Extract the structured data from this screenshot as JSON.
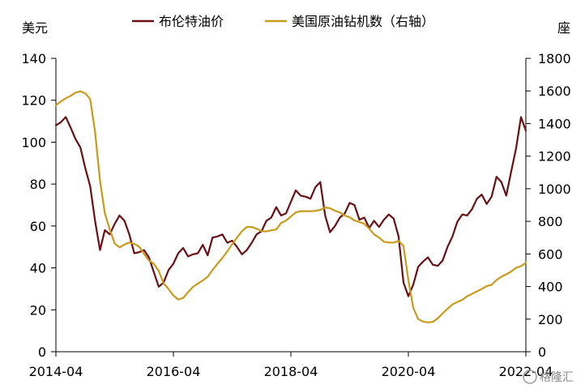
{
  "chart_data": {
    "type": "line",
    "title": "",
    "xlabel": "",
    "y_left": {
      "unit": "美元",
      "ylim": [
        0,
        140
      ],
      "ticks": [
        0,
        20,
        40,
        60,
        80,
        100,
        120,
        140
      ]
    },
    "y_right": {
      "unit": "座",
      "ylim": [
        0,
        1800
      ],
      "ticks": [
        0,
        200,
        400,
        600,
        800,
        1000,
        1200,
        1400,
        1600,
        1800
      ]
    },
    "x_ticks": [
      "2014-04",
      "2016-04",
      "2018-04",
      "2020-04",
      "2022-04"
    ],
    "grid": false,
    "legend_position": "top-center",
    "series": [
      {
        "name": "布伦特油价",
        "axis": "left",
        "color": "#6b0f12",
        "points": [
          [
            "2014-04",
            108
          ],
          [
            "2014-05",
            109.5
          ],
          [
            "2014-06",
            112
          ],
          [
            "2014-07",
            107
          ],
          [
            "2014-08",
            101.5
          ],
          [
            "2014-09",
            97.5
          ],
          [
            "2014-10",
            87.5
          ],
          [
            "2014-11",
            79
          ],
          [
            "2014-12",
            62.5
          ],
          [
            "2015-01",
            48.5
          ],
          [
            "2015-02",
            58
          ],
          [
            "2015-03",
            56
          ],
          [
            "2015-04",
            61
          ],
          [
            "2015-05",
            65
          ],
          [
            "2015-06",
            62.5
          ],
          [
            "2015-07",
            56
          ],
          [
            "2015-08",
            47
          ],
          [
            "2015-09",
            47.5
          ],
          [
            "2015-10",
            48.5
          ],
          [
            "2015-11",
            45
          ],
          [
            "2015-12",
            38
          ],
          [
            "2016-01",
            31
          ],
          [
            "2016-02",
            33
          ],
          [
            "2016-03",
            39
          ],
          [
            "2016-04",
            42
          ],
          [
            "2016-05",
            47
          ],
          [
            "2016-06",
            49.5
          ],
          [
            "2016-07",
            45.5
          ],
          [
            "2016-08",
            46.5
          ],
          [
            "2016-09",
            47
          ],
          [
            "2016-10",
            51
          ],
          [
            "2016-11",
            46
          ],
          [
            "2016-12",
            54.5
          ],
          [
            "2017-01",
            55
          ],
          [
            "2017-02",
            56
          ],
          [
            "2017-03",
            52
          ],
          [
            "2017-04",
            53
          ],
          [
            "2017-05",
            50
          ],
          [
            "2017-06",
            46.5
          ],
          [
            "2017-07",
            48.5
          ],
          [
            "2017-08",
            52
          ],
          [
            "2017-09",
            56
          ],
          [
            "2017-10",
            57.5
          ],
          [
            "2017-11",
            62.5
          ],
          [
            "2017-12",
            64
          ],
          [
            "2018-01",
            69
          ],
          [
            "2018-02",
            65
          ],
          [
            "2018-03",
            66
          ],
          [
            "2018-04",
            71.5
          ],
          [
            "2018-05",
            77
          ],
          [
            "2018-06",
            74.5
          ],
          [
            "2018-07",
            74
          ],
          [
            "2018-08",
            73
          ],
          [
            "2018-09",
            78.5
          ],
          [
            "2018-10",
            81
          ],
          [
            "2018-11",
            65
          ],
          [
            "2018-12",
            57
          ],
          [
            "2019-01",
            60
          ],
          [
            "2019-02",
            64
          ],
          [
            "2019-03",
            66
          ],
          [
            "2019-04",
            71
          ],
          [
            "2019-05",
            70
          ],
          [
            "2019-06",
            63
          ],
          [
            "2019-07",
            64
          ],
          [
            "2019-08",
            59
          ],
          [
            "2019-09",
            62.5
          ],
          [
            "2019-10",
            59.5
          ],
          [
            "2019-11",
            63
          ],
          [
            "2019-12",
            65.5
          ],
          [
            "2020-01",
            63.5
          ],
          [
            "2020-02",
            55
          ],
          [
            "2020-03",
            33
          ],
          [
            "2020-04",
            26.5
          ],
          [
            "2020-05",
            32
          ],
          [
            "2020-06",
            40.5
          ],
          [
            "2020-07",
            43
          ],
          [
            "2020-08",
            45
          ],
          [
            "2020-09",
            41.5
          ],
          [
            "2020-10",
            41
          ],
          [
            "2020-11",
            43.5
          ],
          [
            "2020-12",
            50
          ],
          [
            "2021-01",
            55
          ],
          [
            "2021-02",
            62
          ],
          [
            "2021-03",
            65.5
          ],
          [
            "2021-04",
            65
          ],
          [
            "2021-05",
            68
          ],
          [
            "2021-06",
            73
          ],
          [
            "2021-07",
            75
          ],
          [
            "2021-08",
            70.5
          ],
          [
            "2021-09",
            74
          ],
          [
            "2021-10",
            83.5
          ],
          [
            "2021-11",
            81
          ],
          [
            "2021-12",
            74.5
          ],
          [
            "2022-01",
            86
          ],
          [
            "2022-02",
            97
          ],
          [
            "2022-03",
            112
          ],
          [
            "2022-04",
            105.5
          ]
        ]
      },
      {
        "name": "美国原油钻机数（右轴）",
        "axis": "right",
        "color": "#c99a1c",
        "points": [
          [
            "2014-04",
            1512
          ],
          [
            "2014-05",
            1535
          ],
          [
            "2014-06",
            1555
          ],
          [
            "2014-07",
            1570
          ],
          [
            "2014-08",
            1590
          ],
          [
            "2014-09",
            1598
          ],
          [
            "2014-10",
            1585
          ],
          [
            "2014-11",
            1550
          ],
          [
            "2014-12",
            1350
          ],
          [
            "2015-01",
            1050
          ],
          [
            "2015-02",
            850
          ],
          [
            "2015-03",
            750
          ],
          [
            "2015-04",
            665
          ],
          [
            "2015-05",
            640
          ],
          [
            "2015-06",
            658
          ],
          [
            "2015-07",
            670
          ],
          [
            "2015-08",
            662
          ],
          [
            "2015-09",
            645
          ],
          [
            "2015-10",
            600
          ],
          [
            "2015-11",
            560
          ],
          [
            "2015-12",
            540
          ],
          [
            "2016-01",
            495
          ],
          [
            "2016-02",
            420
          ],
          [
            "2016-03",
            385
          ],
          [
            "2016-04",
            345
          ],
          [
            "2016-05",
            320
          ],
          [
            "2016-06",
            330
          ],
          [
            "2016-07",
            365
          ],
          [
            "2016-08",
            398
          ],
          [
            "2016-09",
            418
          ],
          [
            "2016-10",
            437
          ],
          [
            "2016-11",
            460
          ],
          [
            "2016-12",
            500
          ],
          [
            "2017-01",
            540
          ],
          [
            "2017-02",
            575
          ],
          [
            "2017-03",
            615
          ],
          [
            "2017-04",
            660
          ],
          [
            "2017-05",
            700
          ],
          [
            "2017-06",
            740
          ],
          [
            "2017-07",
            765
          ],
          [
            "2017-08",
            765
          ],
          [
            "2017-09",
            755
          ],
          [
            "2017-10",
            740
          ],
          [
            "2017-11",
            738
          ],
          [
            "2017-12",
            745
          ],
          [
            "2018-01",
            750
          ],
          [
            "2018-02",
            790
          ],
          [
            "2018-03",
            805
          ],
          [
            "2018-04",
            830
          ],
          [
            "2018-05",
            855
          ],
          [
            "2018-06",
            862
          ],
          [
            "2018-07",
            862
          ],
          [
            "2018-08",
            862
          ],
          [
            "2018-09",
            864
          ],
          [
            "2018-10",
            870
          ],
          [
            "2018-11",
            885
          ],
          [
            "2018-12",
            880
          ],
          [
            "2019-01",
            865
          ],
          [
            "2019-02",
            855
          ],
          [
            "2019-03",
            835
          ],
          [
            "2019-04",
            825
          ],
          [
            "2019-05",
            805
          ],
          [
            "2019-06",
            795
          ],
          [
            "2019-07",
            785
          ],
          [
            "2019-08",
            755
          ],
          [
            "2019-09",
            720
          ],
          [
            "2019-10",
            700
          ],
          [
            "2019-11",
            675
          ],
          [
            "2019-12",
            670
          ],
          [
            "2020-01",
            670
          ],
          [
            "2020-02",
            680
          ],
          [
            "2020-03",
            650
          ],
          [
            "2020-04",
            440
          ],
          [
            "2020-05",
            270
          ],
          [
            "2020-06",
            200
          ],
          [
            "2020-07",
            185
          ],
          [
            "2020-08",
            180
          ],
          [
            "2020-09",
            183
          ],
          [
            "2020-10",
            205
          ],
          [
            "2020-11",
            235
          ],
          [
            "2020-12",
            263
          ],
          [
            "2021-01",
            290
          ],
          [
            "2021-02",
            305
          ],
          [
            "2021-03",
            318
          ],
          [
            "2021-04",
            340
          ],
          [
            "2021-05",
            355
          ],
          [
            "2021-06",
            370
          ],
          [
            "2021-07",
            385
          ],
          [
            "2021-08",
            403
          ],
          [
            "2021-09",
            410
          ],
          [
            "2021-10",
            440
          ],
          [
            "2021-11",
            460
          ],
          [
            "2021-12",
            475
          ],
          [
            "2022-01",
            492
          ],
          [
            "2022-02",
            515
          ],
          [
            "2022-03",
            525
          ],
          [
            "2022-04",
            545
          ]
        ]
      }
    ]
  },
  "watermark": "格隆汇"
}
